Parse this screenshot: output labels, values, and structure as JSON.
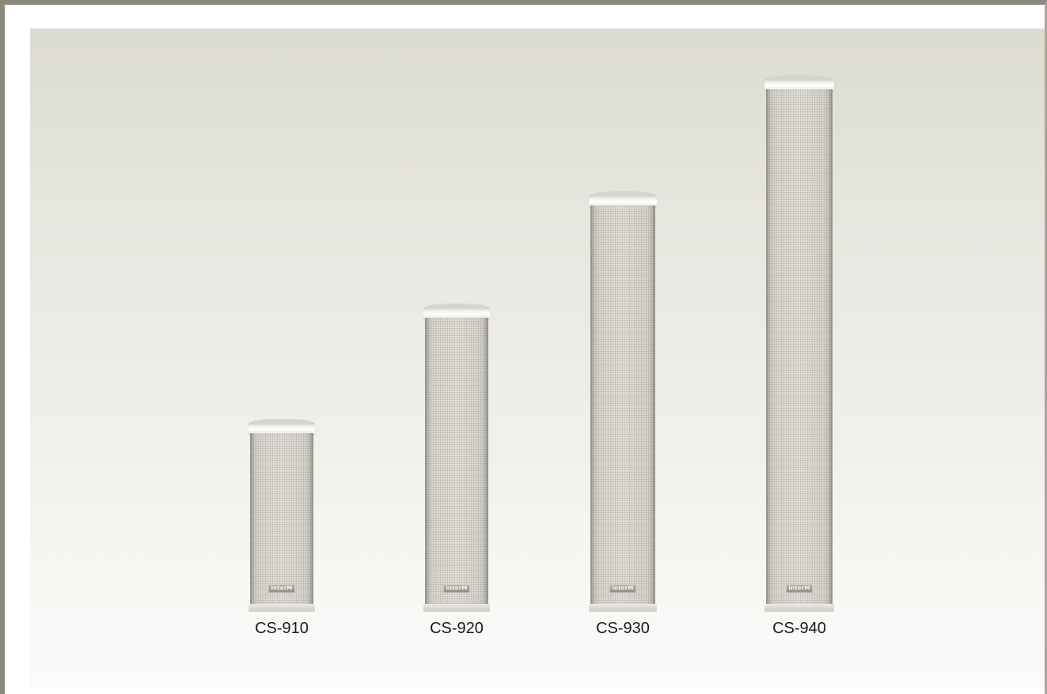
{
  "products": [
    {
      "model": "CS-910",
      "brand": "interM"
    },
    {
      "model": "CS-920",
      "brand": "interM"
    },
    {
      "model": "CS-930",
      "brand": "interM"
    },
    {
      "model": "CS-940",
      "brand": "interM"
    }
  ],
  "colors": {
    "frame_border": "#8c897b",
    "background_top": "#dcdbd2",
    "background_bottom": "#fbfbfa",
    "speaker_grille": "#d7d5cd"
  }
}
